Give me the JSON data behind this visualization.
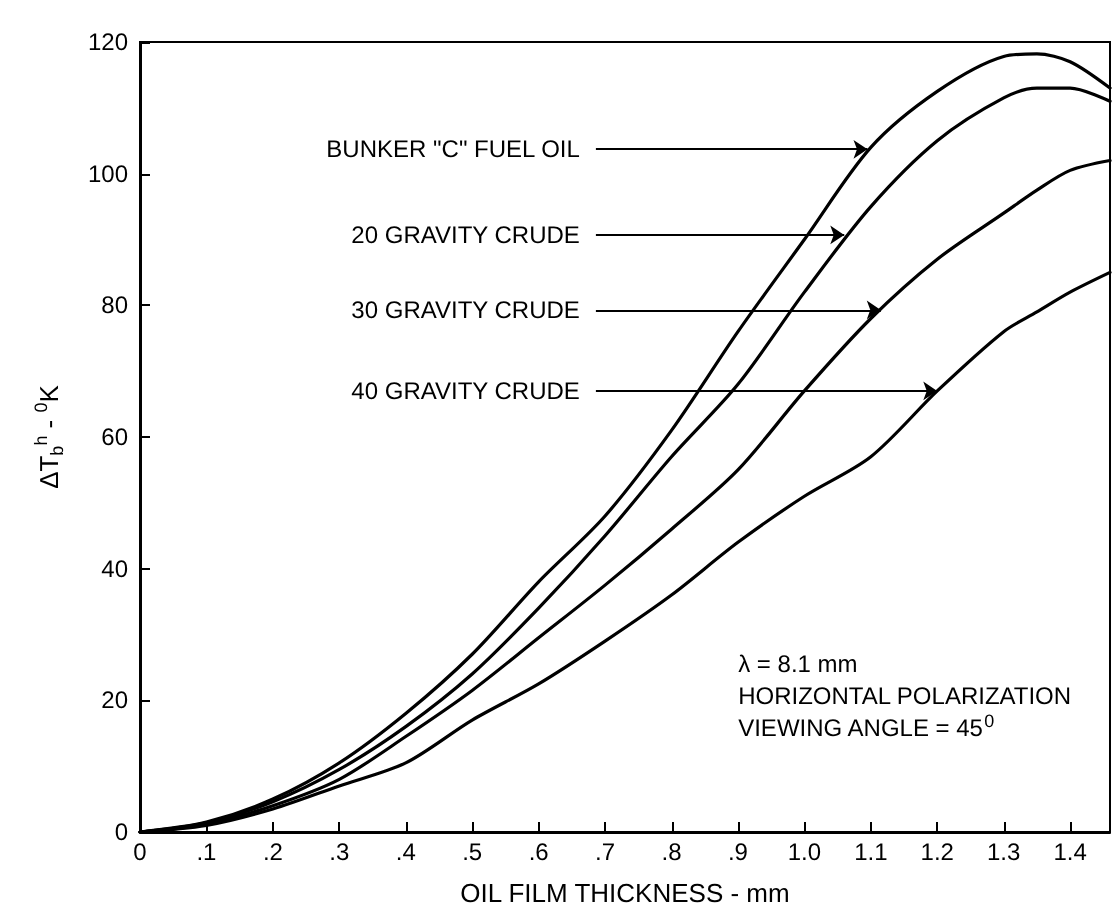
{
  "chart_data": {
    "type": "line",
    "xlabel": "OIL FILM THICKNESS - mm",
    "ylabel": "ΔT$_{b}$$^{h}$ - $^{0}$K",
    "x": [
      0,
      0.1,
      0.2,
      0.3,
      0.4,
      0.5,
      0.6,
      0.7,
      0.8,
      0.9,
      1.0,
      1.1,
      1.2,
      1.3,
      1.35,
      1.4,
      1.46
    ],
    "series": [
      {
        "color": "#000000",
        "values": [
          0,
          1.5,
          5,
          10.5,
          18,
          27,
          38,
          48,
          61,
          76,
          90,
          104,
          112.5,
          117.8,
          118.2,
          117,
          113
        ]
      },
      {
        "color": "#000000",
        "values": [
          0,
          1.4,
          4.6,
          9.5,
          16,
          24,
          34,
          45,
          57,
          68,
          82,
          95,
          105,
          111.5,
          113,
          113,
          111
        ]
      },
      {
        "color": "#000000",
        "values": [
          0,
          1.2,
          4,
          8,
          14.5,
          21.5,
          29.5,
          37.5,
          46,
          55,
          67,
          78,
          87,
          94,
          97.5,
          100.5,
          102
        ]
      },
      {
        "color": "#000000",
        "values": [
          0,
          1,
          3.5,
          7,
          10.5,
          17,
          22.5,
          29,
          36,
          44,
          51,
          57,
          67,
          76,
          79,
          82,
          85
        ]
      }
    ],
    "xlim": [
      0,
      1.46
    ],
    "xticks": [
      0,
      {
        "value": 0.1,
        "label": ".1"
      },
      {
        "value": 0.2,
        "label": ".2"
      },
      {
        "value": 0.3,
        "label": ".3"
      },
      {
        "value": 0.4,
        "label": ".4"
      },
      {
        "value": 0.5,
        "label": ".5"
      },
      {
        "value": 0.6,
        "label": ".6"
      },
      {
        "value": 0.7,
        "label": ".7"
      },
      {
        "value": 0.8,
        "label": ".8"
      },
      {
        "value": 0.9,
        "label": ".9"
      },
      {
        "value": 1.0,
        "label": "1.0"
      },
      {
        "value": 1.1,
        "label": "1.1"
      },
      {
        "value": 1.2,
        "label": "1.2"
      },
      {
        "value": 1.3,
        "label": "1.3"
      },
      {
        "value": 1.4,
        "label": "1.4"
      }
    ],
    "ylim": [
      0,
      120
    ],
    "yticks": [
      0,
      20,
      40,
      60,
      80,
      100,
      120
    ],
    "grid": false,
    "marker": "none",
    "line_style": "solid",
    "annotations": [
      {
        "text": "BUNKER \"C\" FUEL OIL",
        "x": 1.095,
        "y": 103.7
      },
      {
        "text": "20 GRAVITY CRUDE",
        "x": 1.06,
        "y": 90.7
      },
      {
        "text": "30 GRAVITY CRUDE",
        "x": 1.115,
        "y": 79.3
      },
      {
        "text": "40 GRAVITY CRUDE",
        "x": 1.2,
        "y": 67
      },
      "λ = 8.1 mm\nHORIZONTAL POLARIZATION\nVIEWING ANGLE = 45$^{0}$"
    ]
  }
}
